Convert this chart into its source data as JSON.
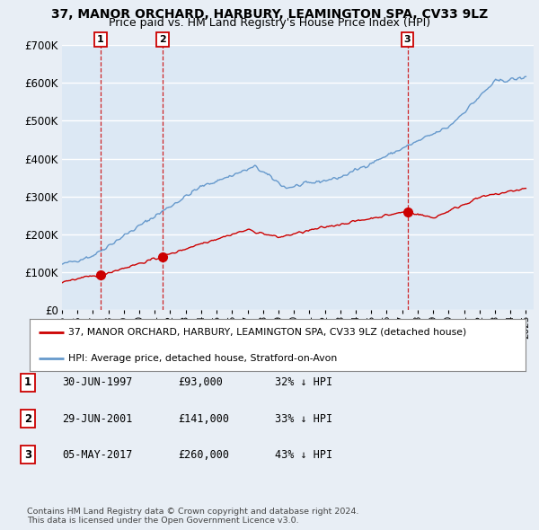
{
  "title": "37, MANOR ORCHARD, HARBURY, LEAMINGTON SPA, CV33 9LZ",
  "subtitle": "Price paid vs. HM Land Registry's House Price Index (HPI)",
  "ylim": [
    0,
    700000
  ],
  "yticks": [
    0,
    100000,
    200000,
    300000,
    400000,
    500000,
    600000,
    700000
  ],
  "ytick_labels": [
    "£0",
    "£100K",
    "£200K",
    "£300K",
    "£400K",
    "£500K",
    "£600K",
    "£700K"
  ],
  "bg_color": "#e8eef5",
  "plot_bg_color": "#dce8f4",
  "grid_color": "#ffffff",
  "red_line_color": "#cc0000",
  "blue_line_color": "#6699cc",
  "sale_year_nums": [
    1997.495,
    2001.493,
    2017.339
  ],
  "sale_prices": [
    93000,
    141000,
    260000
  ],
  "sale_labels": [
    "1",
    "2",
    "3"
  ],
  "sale_hpi_pct": [
    "32% ↓ HPI",
    "33% ↓ HPI",
    "43% ↓ HPI"
  ],
  "sale_date_strs": [
    "30-JUN-1997",
    "29-JUN-2001",
    "05-MAY-2017"
  ],
  "sale_price_strs": [
    "£93,000",
    "£141,000",
    "£260,000"
  ],
  "legend_property": "37, MANOR ORCHARD, HARBURY, LEAMINGTON SPA, CV33 9LZ (detached house)",
  "legend_hpi": "HPI: Average price, detached house, Stratford-on-Avon",
  "footnote": "Contains HM Land Registry data © Crown copyright and database right 2024.\nThis data is licensed under the Open Government Licence v3.0.",
  "title_fontsize": 10,
  "subtitle_fontsize": 9
}
